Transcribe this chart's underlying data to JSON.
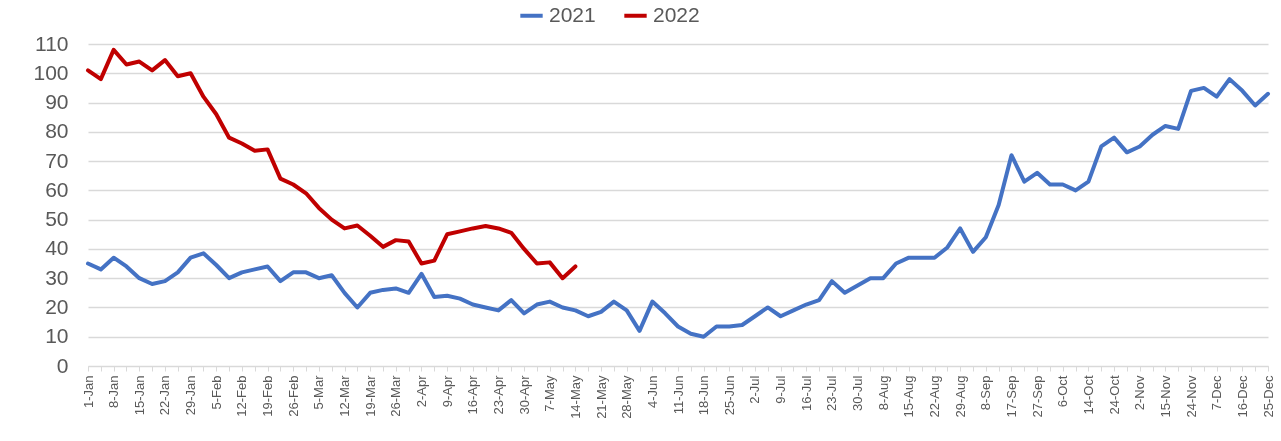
{
  "chart_data": {
    "type": "line",
    "categories": [
      "1-Jan",
      null,
      "8-Jan",
      null,
      "15-Jan",
      null,
      "22-Jan",
      null,
      "29-Jan",
      null,
      "5-Feb",
      null,
      "12-Feb",
      null,
      "19-Feb",
      null,
      "26-Feb",
      null,
      "5-Mar",
      null,
      "12-Mar",
      null,
      "19-Mar",
      null,
      "26-Mar",
      null,
      "2-Apr",
      null,
      "9-Apr",
      null,
      "16-Apr",
      null,
      "23-Apr",
      null,
      "30-Apr",
      null,
      "7-May",
      null,
      "14-May",
      null,
      "21-May",
      null,
      "28-May",
      null,
      "4-Jun",
      null,
      "11-Jun",
      null,
      "18-Jun",
      null,
      "25-Jun",
      null,
      "2-Jul",
      null,
      "9-Jul",
      null,
      "16-Jul",
      null,
      "23-Jul",
      null,
      "30-Jul",
      null,
      "8-Aug",
      null,
      "15-Aug",
      null,
      "22-Aug",
      null,
      "29-Aug",
      null,
      "8-Sep",
      null,
      "17-Sep",
      null,
      "27-Sep",
      null,
      "6-Oct",
      null,
      "14-Oct",
      null,
      "24-Oct",
      null,
      "2-Nov",
      null,
      "15-Nov",
      null,
      "24-Nov",
      null,
      "7-Dec",
      null,
      "16-Dec",
      null,
      "25-Dec"
    ],
    "series": [
      {
        "name": "2021",
        "color": "#4472c4",
        "values": [
          35,
          33,
          37,
          34,
          30,
          28,
          29,
          32,
          37,
          38.5,
          34.5,
          30,
          32,
          33,
          34,
          29,
          32,
          32,
          30,
          31,
          25,
          20,
          25,
          26,
          26.5,
          25,
          31.5,
          23.6,
          24,
          23,
          21,
          20,
          19,
          22.5,
          18,
          21,
          22,
          20,
          19,
          17,
          18.5,
          22,
          19,
          12,
          22,
          18,
          13.5,
          11,
          10,
          13.5,
          13.5,
          14,
          17,
          20,
          17,
          19,
          21,
          22.5,
          29,
          25,
          27.5,
          30,
          30,
          35,
          37,
          37,
          37,
          40.5,
          47,
          39,
          44,
          55,
          72,
          63,
          66,
          62,
          62,
          60,
          63,
          75,
          78,
          73,
          75,
          79,
          82,
          81,
          94,
          95,
          92,
          98,
          94,
          89,
          93
        ]
      },
      {
        "name": "2022",
        "color": "#c00000",
        "values": [
          101,
          98,
          108,
          103,
          104,
          101,
          104.5,
          99,
          100,
          92,
          86,
          78,
          76,
          73.5,
          74,
          64,
          62,
          59,
          54,
          50,
          47,
          48,
          44.5,
          40.7,
          43,
          42.5,
          35,
          36,
          45,
          46,
          47,
          47.8,
          47,
          45.5,
          40,
          35,
          35.4,
          30,
          34,
          null,
          null,
          null,
          null,
          null,
          null,
          null,
          null,
          null,
          null,
          null,
          null,
          null,
          null,
          null,
          null,
          null,
          null,
          null,
          null,
          null,
          null,
          null,
          null,
          null,
          null,
          null,
          null,
          null,
          null,
          null,
          null,
          null,
          null,
          null,
          null,
          null,
          null,
          null,
          null,
          null,
          null,
          null,
          null,
          null,
          null,
          null,
          null,
          null,
          null,
          null,
          null,
          null,
          null
        ]
      }
    ],
    "ylim": [
      0,
      110
    ],
    "yticks": [
      0,
      10,
      20,
      30,
      40,
      50,
      60,
      70,
      80,
      90,
      100,
      110
    ],
    "grid": "y",
    "legend": "top",
    "marker": "none",
    "line_style": "solid"
  }
}
